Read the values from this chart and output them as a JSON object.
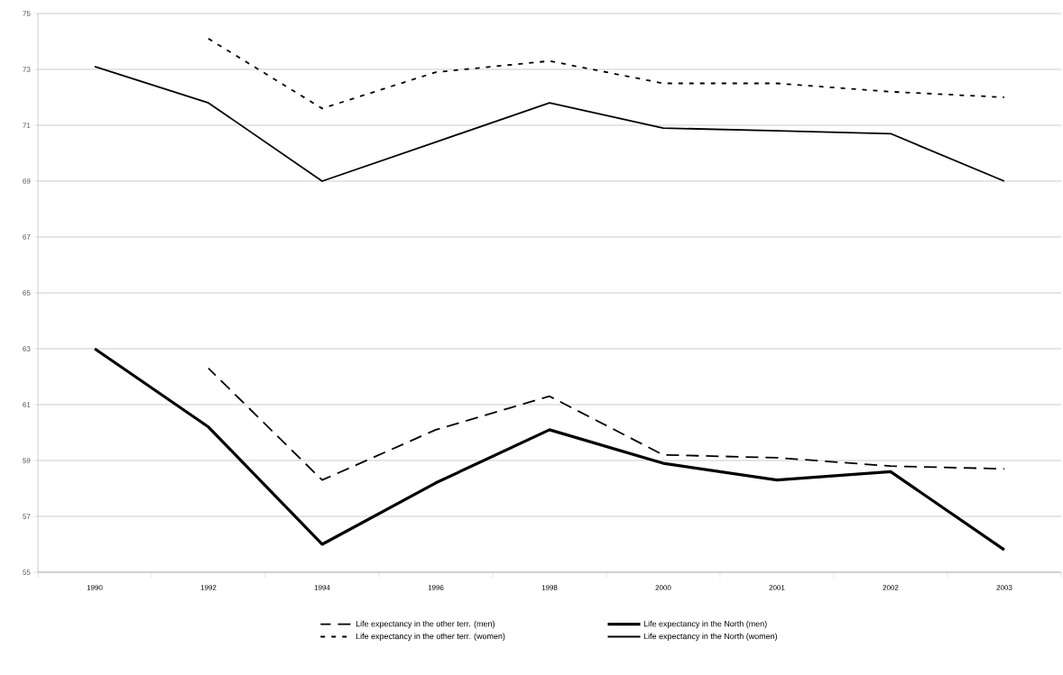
{
  "chart_data": {
    "type": "line",
    "categories": [
      "1990",
      "1992",
      "1994",
      "1996",
      "1998",
      "2000",
      "2001",
      "2002",
      "2003"
    ],
    "series": [
      {
        "name": "Life expectancy in the other terr.  (men)",
        "color": "#000000",
        "line_style": "dashed",
        "values": [
          null,
          62.3,
          58.3,
          60.1,
          61.3,
          59.2,
          59.1,
          58.8,
          58.7
        ]
      },
      {
        "name": "Life expectancy  in the North (men)",
        "color": "#000000",
        "line_style": "solid",
        "values": [
          63.0,
          60.2,
          56.0,
          58.2,
          60.1,
          58.9,
          58.3,
          58.6,
          55.8
        ]
      },
      {
        "name": "Life expectancy  in the other terr. (women)",
        "color": "#000000",
        "line_style": "dotted",
        "values": [
          null,
          74.1,
          71.6,
          72.9,
          73.3,
          72.5,
          72.5,
          72.2,
          72.0
        ]
      },
      {
        "name": "Life expectancy  in the North (women)",
        "color": "#000000",
        "line_style": "solid",
        "values": [
          73.1,
          71.8,
          69.0,
          70.4,
          71.8,
          70.9,
          70.8,
          70.7,
          69.0
        ]
      }
    ],
    "ylim": [
      55,
      75
    ],
    "yticks": [
      55,
      57,
      59,
      61,
      63,
      65,
      67,
      69,
      71,
      73,
      75
    ],
    "grid": "y",
    "legend": "bottom",
    "marker": "none"
  }
}
